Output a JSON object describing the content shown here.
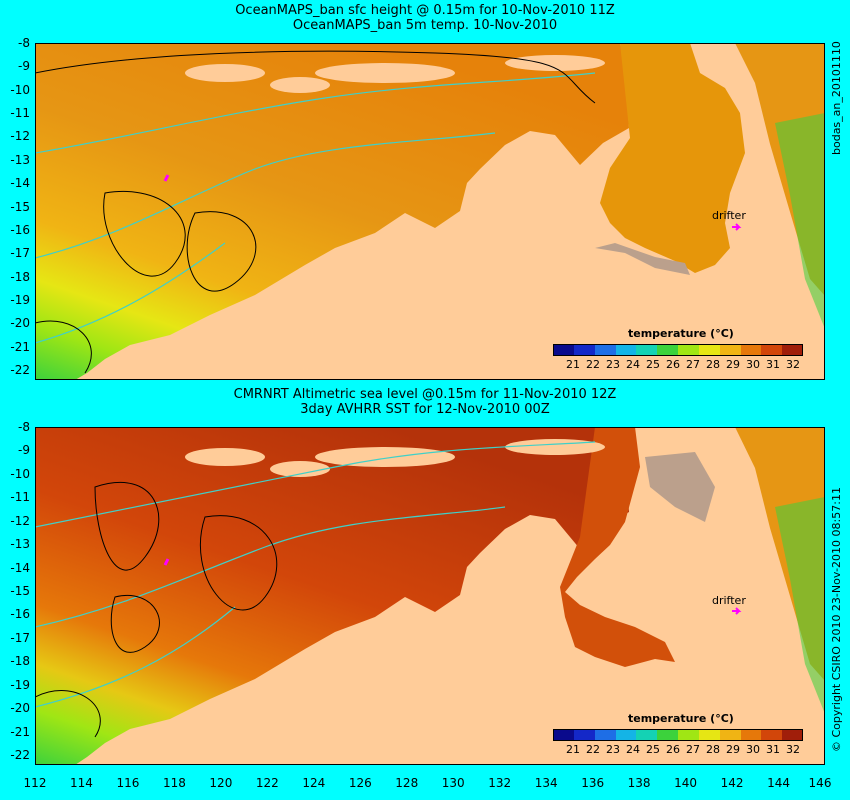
{
  "panels": [
    {
      "title_line1": "OceanMAPS_ban sfc height @ 0.15m for 10-Nov-2010 11Z",
      "title_line2": "OceanMAPS_ban 5m temp. 10-Nov-2010",
      "side_label": "bodas_an_20101110",
      "drifter_label": "drifter",
      "variant": "model"
    },
    {
      "title_line1": "CMRNRT Altimetric sea level  @0.15m  for 11-Nov-2010 12Z",
      "title_line2": "3day AVHRR SST for 12-Nov-2010 00Z",
      "side_label": "© Copyright CSIRO 2010   23-Nov-2010 08:57:11",
      "drifter_label": "drifter",
      "variant": "obs"
    }
  ],
  "axes": {
    "lat_ticks": [
      "-8",
      "-9",
      "-10",
      "-11",
      "-12",
      "-13",
      "-14",
      "-15",
      "-16",
      "-17",
      "-18",
      "-19",
      "-20",
      "-21",
      "-22"
    ],
    "lon_ticks": [
      "112",
      "114",
      "116",
      "118",
      "120",
      "122",
      "124",
      "126",
      "128",
      "130",
      "132",
      "134",
      "136",
      "138",
      "140",
      "142",
      "144",
      "146"
    ]
  },
  "colorbar": {
    "title": "temperature (°C)",
    "ticks": [
      "21",
      "22",
      "23",
      "24",
      "25",
      "26",
      "27",
      "28",
      "29",
      "30",
      "31",
      "32"
    ],
    "colors": [
      "#0a0a8c",
      "#1428c8",
      "#1e6ee6",
      "#14b4e6",
      "#14d2b4",
      "#3cd23c",
      "#a0e614",
      "#e6e614",
      "#f0b414",
      "#e6780a",
      "#d2460a",
      "#a01e0a"
    ]
  },
  "colors": {
    "background": "#00ffff",
    "land": "#ffcc99",
    "no_data": "#bba08c",
    "contour_height": "#000000",
    "contour_bathymetry": "#40d0c8",
    "drifter": "#ff00ff"
  }
}
